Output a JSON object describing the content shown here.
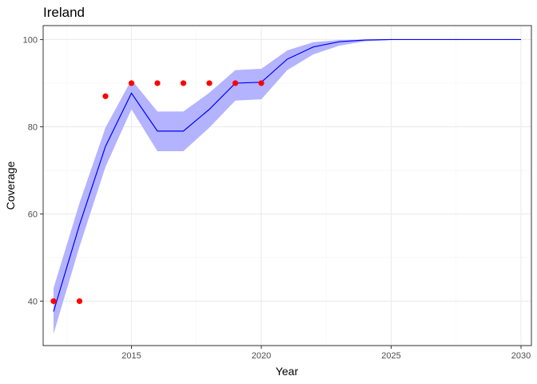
{
  "chart_data": {
    "type": "line",
    "title": "Ireland",
    "xlabel": "Year",
    "ylabel": "Coverage",
    "xlim": [
      2011.6,
      2030.4
    ],
    "ylim": [
      29.8,
      103.2
    ],
    "x_ticks": [
      2015,
      2020,
      2025,
      2030
    ],
    "y_ticks": [
      40,
      60,
      80,
      100
    ],
    "grid": true,
    "colors": {
      "line": "#0000ff",
      "band": "#b3b3ff",
      "points": "#ff0000",
      "grid_major": "#ebebeb",
      "grid_minor": "#f5f5f5",
      "border": "#333333"
    },
    "series": [
      {
        "type": "line",
        "x": [
          2012,
          2013,
          2014,
          2015,
          2016,
          2017,
          2018,
          2019,
          2020,
          2021,
          2022,
          2023,
          2024,
          2025,
          2026,
          2027,
          2028,
          2029,
          2030
        ],
        "y": [
          37.6,
          57.5,
          75.5,
          87.7,
          79.0,
          79.0,
          84.0,
          90.0,
          90.2,
          95.5,
          98.3,
          99.5,
          99.9,
          100,
          100,
          100,
          100,
          100,
          100
        ]
      },
      {
        "type": "band",
        "x": [
          2012,
          2013,
          2014,
          2015,
          2016,
          2017,
          2018,
          2019,
          2020,
          2021,
          2022,
          2023,
          2024,
          2025,
          2026,
          2027,
          2028,
          2029,
          2030
        ],
        "lower": [
          32.5,
          52.5,
          70.8,
          84.0,
          74.4,
          74.4,
          79.8,
          86.0,
          86.3,
          93.0,
          96.6,
          98.6,
          99.6,
          99.9,
          100,
          100,
          100,
          100,
          100
        ],
        "upper": [
          43.0,
          62.5,
          79.8,
          90.8,
          83.5,
          83.5,
          87.8,
          93.0,
          93.3,
          97.5,
          99.4,
          99.9,
          100,
          100,
          100,
          100,
          100,
          100,
          100
        ]
      },
      {
        "type": "scatter",
        "x": [
          2012,
          2013,
          2014,
          2015,
          2016,
          2017,
          2018,
          2019,
          2020
        ],
        "y": [
          40,
          40,
          87,
          90,
          90,
          90,
          90,
          90,
          90
        ]
      }
    ]
  }
}
